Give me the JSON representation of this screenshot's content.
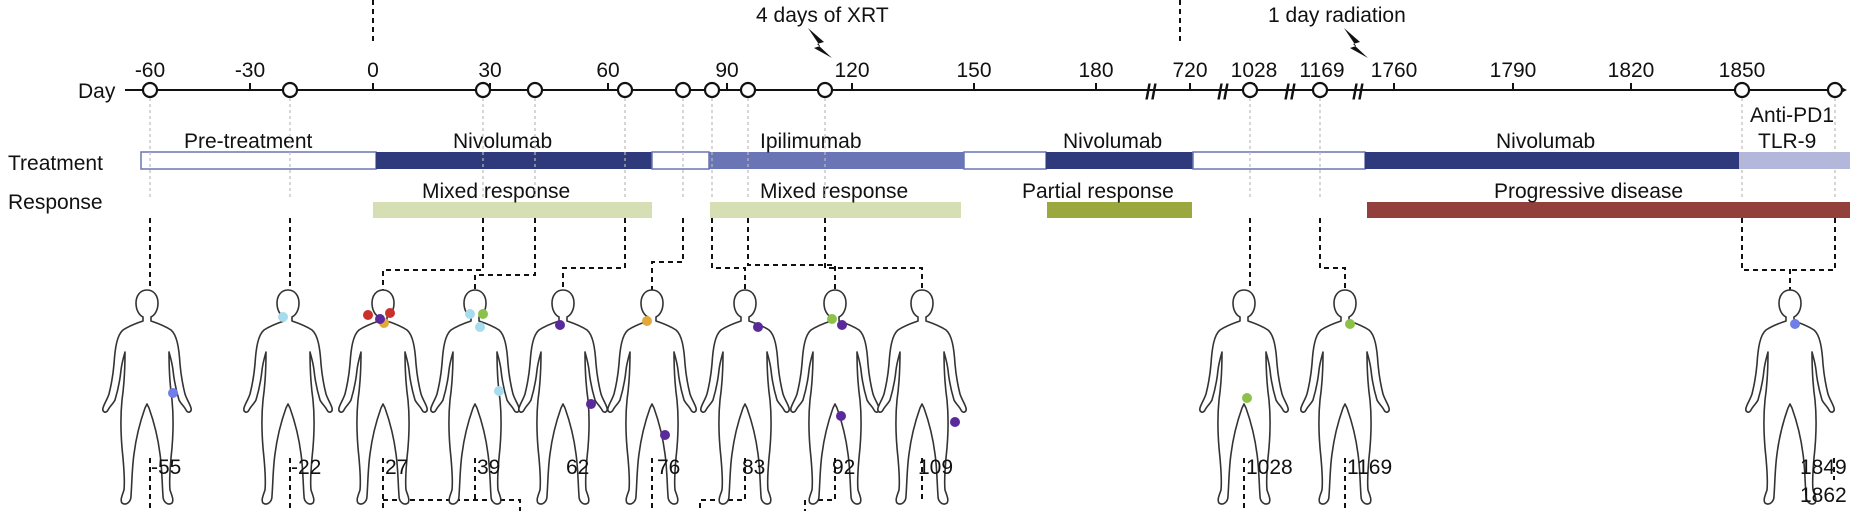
{
  "rows": {
    "day_label": "Day",
    "treatment_label": "Treatment",
    "response_label": "Response"
  },
  "axis": {
    "segments": [
      {
        "start": -60,
        "end": 180,
        "ticks": [
          -60,
          -30,
          0,
          30,
          60,
          90,
          120,
          150,
          180
        ]
      },
      {
        "start": 720,
        "end": 720,
        "ticks": [
          720
        ]
      },
      {
        "start": 1028,
        "end": 1028,
        "ticks": [
          1028
        ]
      },
      {
        "start": 1169,
        "end": 1169,
        "ticks": [
          1169
        ]
      },
      {
        "start": 1760,
        "end": 1870,
        "ticks": [
          1760,
          1790,
          1820,
          1850
        ]
      }
    ],
    "tick_labels": [
      "-60",
      "-30",
      "0",
      "30",
      "60",
      "90",
      "120",
      "150",
      "180",
      "720",
      "1028",
      "1169",
      "1760",
      "1790",
      "1820",
      "1850"
    ],
    "break_marks": [
      "//",
      "//",
      "//",
      "//"
    ]
  },
  "events": [
    {
      "day": -55,
      "label": "4 days of XRT",
      "note": ""
    }
  ],
  "annotations": [
    {
      "text": "4 days of XRT",
      "kind": "lightning"
    },
    {
      "text": "1 day radiation",
      "kind": "lightning"
    }
  ],
  "treatments": [
    {
      "label": "Pre-treatment",
      "start": -60,
      "end": 0,
      "color": "#ffffff"
    },
    {
      "label": "Nivolumab",
      "start": 0,
      "end": 70,
      "color": "#2e3a7c"
    },
    {
      "label": "",
      "start": 70,
      "end": 85,
      "color": "#ffffff"
    },
    {
      "label": "Ipilimumab",
      "start": 85,
      "end": 150,
      "color": "#6a75b6"
    },
    {
      "label": "",
      "start": 150,
      "end": 170,
      "color": "#ffffff"
    },
    {
      "label": "Nivolumab",
      "start": 170,
      "end": 720,
      "color": "#2e3a7c"
    },
    {
      "label": "",
      "start": 720,
      "end": 1169,
      "color": "#ffffff"
    },
    {
      "label": "Nivolumab",
      "start": 1169,
      "end": 1850,
      "color": "#2e3a7c"
    },
    {
      "label": "Anti-PD1\nTLR-9",
      "start": 1850,
      "end": 1875,
      "color": "#b3b7dc"
    }
  ],
  "treatment_text": {
    "pre": "Pre-treatment",
    "nivo1": "Nivolumab",
    "ipi": "Ipilimumab",
    "nivo2": "Nivolumab",
    "nivo3": "Nivolumab",
    "antipd1_line1": "Anti-PD1",
    "antipd1_line2": "TLR-9"
  },
  "responses": [
    {
      "label": "Mixed response",
      "color": "#d6dfb3"
    },
    {
      "label": "Mixed response",
      "color": "#d6dfb3"
    },
    {
      "label": "Partial response",
      "color": "#9aa83e"
    },
    {
      "label": "Progressive disease",
      "color": "#93403c"
    }
  ],
  "timepoints": [
    "-55",
    "-22",
    "27",
    "39",
    "62",
    "76",
    "83",
    "92",
    "109",
    "1028",
    "1169",
    "1849",
    "1862"
  ],
  "colors": {
    "axis": "#111111",
    "dark_blue": "#2e3a7c",
    "mid_blue": "#6a75b6",
    "light_blue": "#b3b7dc",
    "light_green": "#d6dfb3",
    "olive": "#9aa83e",
    "red": "#93403c",
    "dot_purple": "#5a2a9a",
    "dot_lightblue": "#a7dcec",
    "dot_green": "#8cc24a",
    "dot_red": "#c8322b",
    "dot_orange": "#e2a93a",
    "dot_blue": "#6f7ee8"
  }
}
